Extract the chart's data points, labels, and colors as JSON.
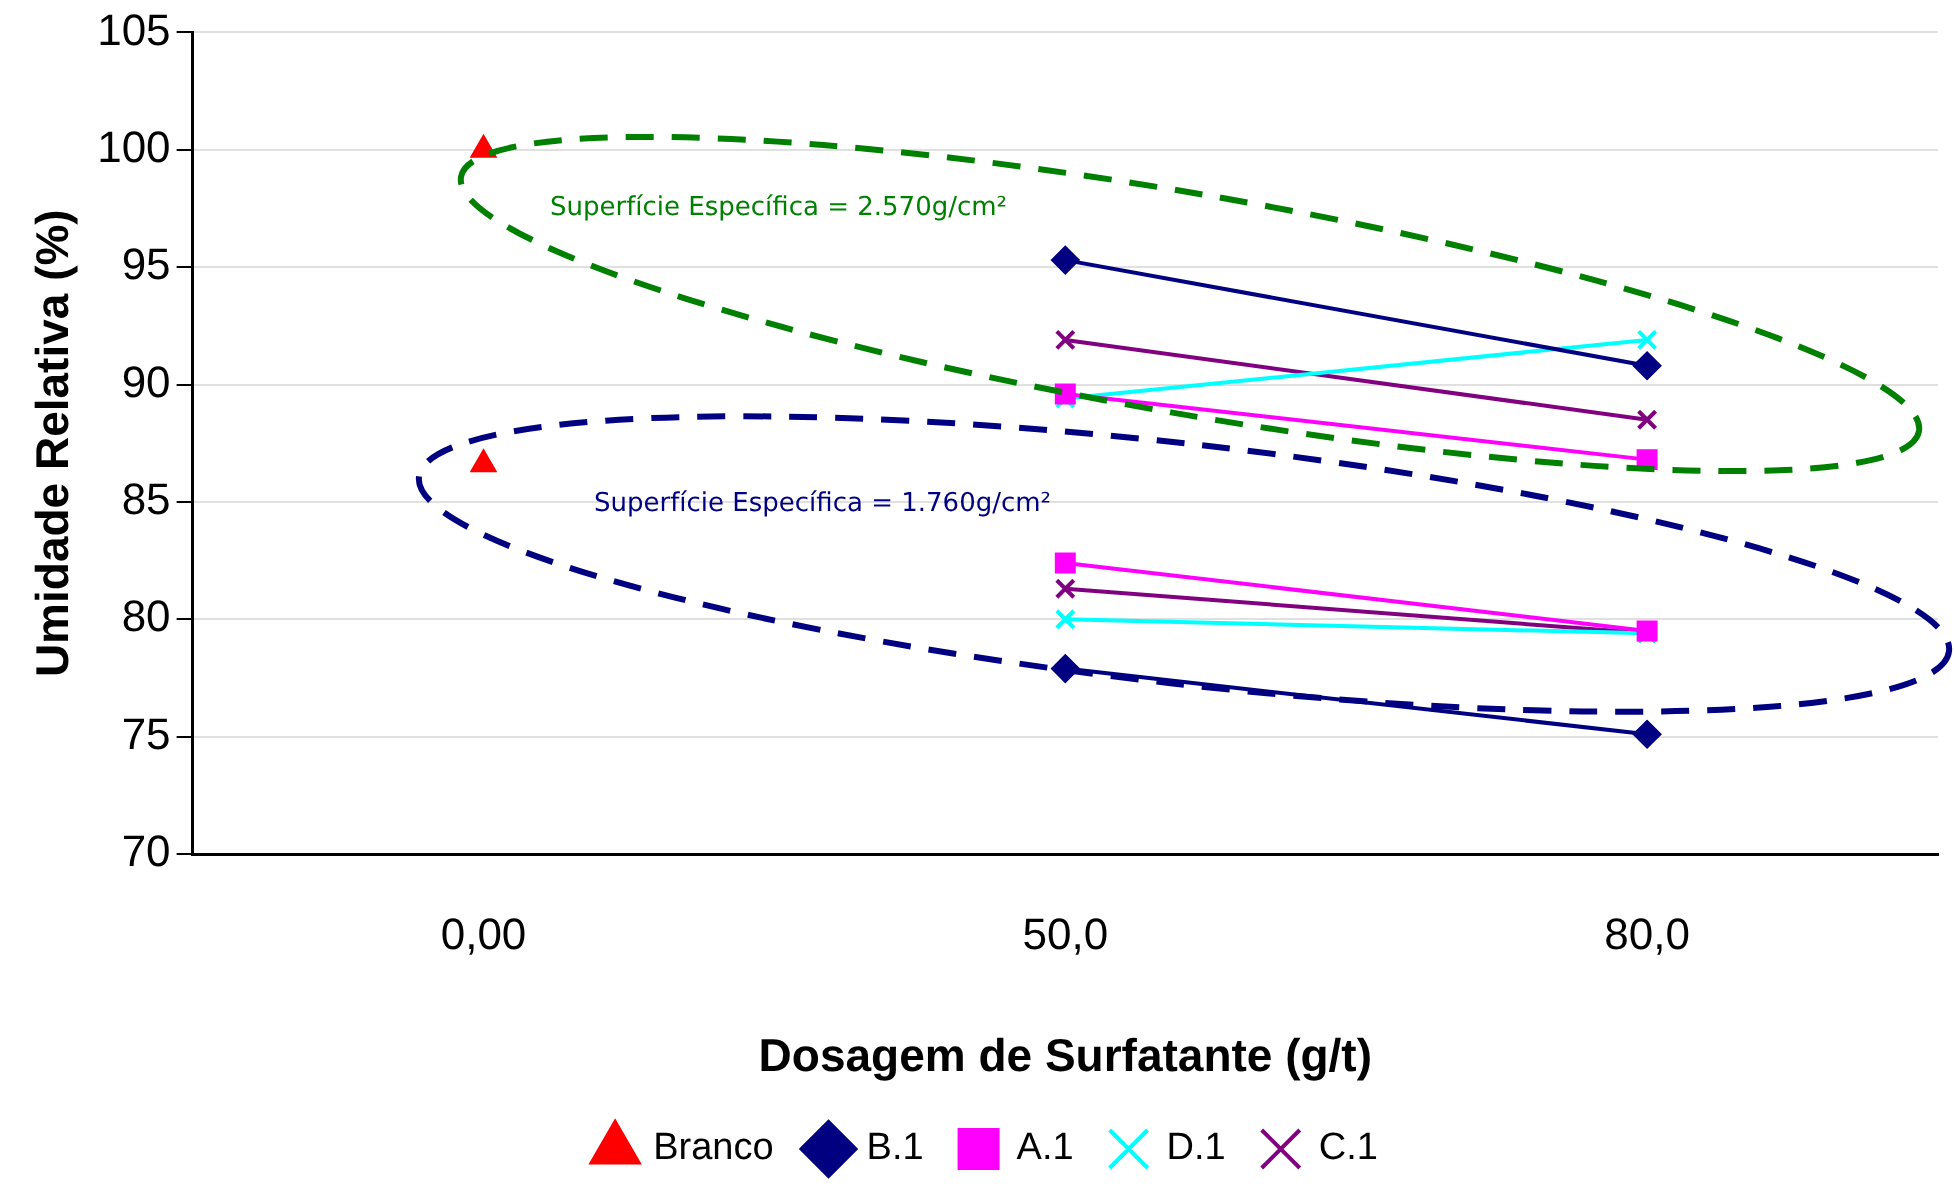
{
  "chart_data": {
    "type": "line",
    "categories": [
      "0,00",
      "50,0",
      "80,0"
    ],
    "xlabel": "Dosagem de Surfatante (g/t)",
    "ylabel": "Umidade Relativa (%)",
    "ylim": [
      70,
      105
    ],
    "yticks": [
      70,
      75,
      80,
      85,
      90,
      95,
      100,
      105
    ],
    "grid": "y",
    "legend": "bottom",
    "annotations": [
      "Superfície Específica = 2.570g/cm²",
      "Superfície Específica = 1.760g/cm²"
    ],
    "series": [
      {
        "name": "Branco",
        "type": "scatter",
        "color": "#ff0000",
        "marker": "triangle",
        "x": [
          "0,00",
          "0,00"
        ],
        "values": [
          100,
          86.6
        ]
      },
      {
        "name": "B.1",
        "color": "#000080",
        "marker": "diamond",
        "values": [
          null,
          95.3,
          90.8
        ]
      },
      {
        "name": "A.1",
        "color": "#ff00ff",
        "marker": "square",
        "values": [
          null,
          89.6,
          86.8
        ]
      },
      {
        "name": "D.1",
        "color": "#00ffff",
        "marker": "cross",
        "values": [
          null,
          89.4,
          91.9
        ]
      },
      {
        "name": "C.1",
        "color": "#800080",
        "marker": "cross",
        "values": [
          null,
          91.9,
          88.5
        ]
      },
      {
        "color": "#000080",
        "marker": "diamond",
        "values": [
          null,
          77.9,
          75.1
        ]
      },
      {
        "color": "#ff00ff",
        "marker": "square",
        "values": [
          null,
          82.4,
          79.5
        ]
      },
      {
        "color": "#00ffff",
        "marker": "cross",
        "values": [
          null,
          80.0,
          79.4
        ]
      },
      {
        "color": "#800080",
        "marker": "cross",
        "values": [
          null,
          81.3,
          79.4
        ]
      }
    ]
  }
}
